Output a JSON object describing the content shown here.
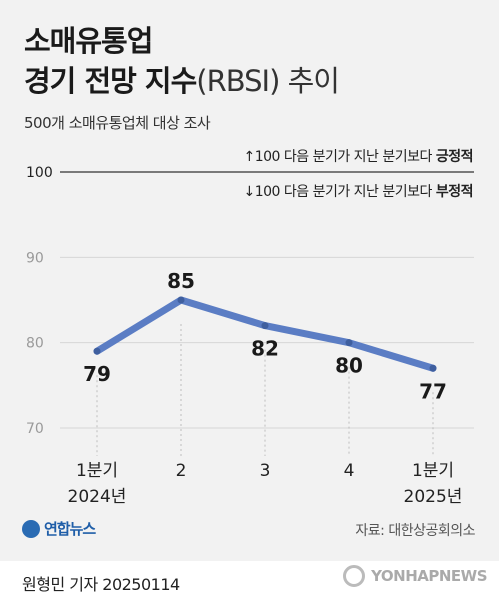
{
  "header": {
    "title_line1": "소매유통업",
    "title_line2_main": "경기 전망 지수",
    "title_line2_paren": "(RBSI) 추이",
    "subtitle": "500개 소매유통업체 대상 조사"
  },
  "legend_notes": {
    "up_prefix": "↑100 다음 분기가 지난 분기보다 ",
    "up_bold": "긍정적",
    "down_prefix": "↓100 다음 분기가 지난 분기보다 ",
    "down_bold": "부정적"
  },
  "chart_data": {
    "type": "line",
    "categories": [
      [
        "1분기",
        "2024년"
      ],
      [
        "2"
      ],
      [
        "3"
      ],
      [
        "4"
      ],
      [
        "1분기",
        "2025년"
      ]
    ],
    "series": [
      {
        "values": [
          79,
          85,
          82,
          80,
          77
        ]
      }
    ],
    "y_ticks": [
      70,
      80,
      90,
      100
    ],
    "reference_line": 100,
    "ylim": [
      70,
      100
    ],
    "grid": true,
    "line_color": "#5b7dc4"
  },
  "footer": {
    "logo_text": "연합뉴스",
    "source": "자료: 대한상공회의소",
    "byline": "원형민 기자  20250114",
    "agency": "YONHAPNEWS"
  }
}
